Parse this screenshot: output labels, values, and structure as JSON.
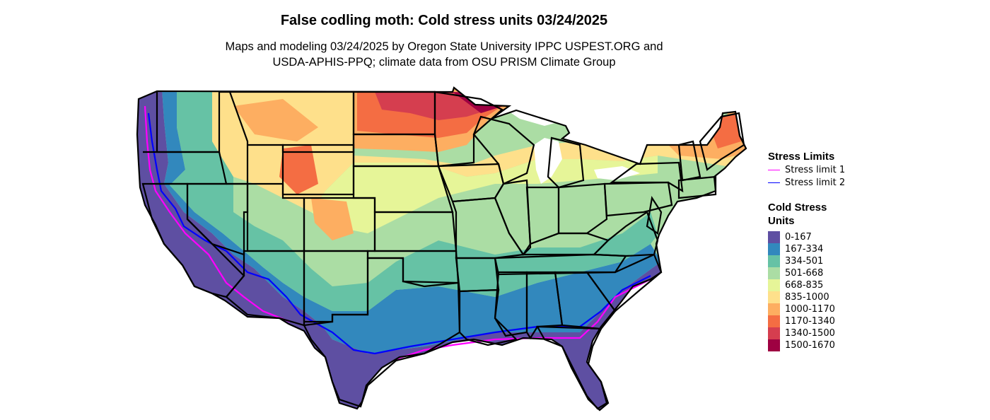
{
  "title": "False codling moth: Cold stress units 03/24/2025",
  "subtitle_line1": "Maps and modeling 03/24/2025 by Oregon State University IPPC USPEST.ORG and",
  "subtitle_line2": "USDA-APHIS-PPQ; climate data from OSU PRISM Climate Group",
  "legend_limits": {
    "title": "Stress Limits",
    "items": [
      {
        "label": "Stress limit 1",
        "color": "#ff00ff"
      },
      {
        "label": "Stress limit 2",
        "color": "#0000ff"
      }
    ]
  },
  "legend_units": {
    "title_line1": "Cold Stress",
    "title_line2": "Units",
    "bins": [
      {
        "label": "0-167",
        "color": "#5e4fa2"
      },
      {
        "label": "167-334",
        "color": "#3288bd"
      },
      {
        "label": "334-501",
        "color": "#66c2a5"
      },
      {
        "label": "501-668",
        "color": "#abdda4"
      },
      {
        "label": "668-835",
        "color": "#e6f598"
      },
      {
        "label": "835-1000",
        "color": "#fee08b"
      },
      {
        "label": "1000-1170",
        "color": "#fdae61"
      },
      {
        "label": "1170-1340",
        "color": "#f46d43"
      },
      {
        "label": "1340-1500",
        "color": "#d53e4f"
      },
      {
        "label": "1500-1670",
        "color": "#9e0142"
      }
    ]
  }
}
